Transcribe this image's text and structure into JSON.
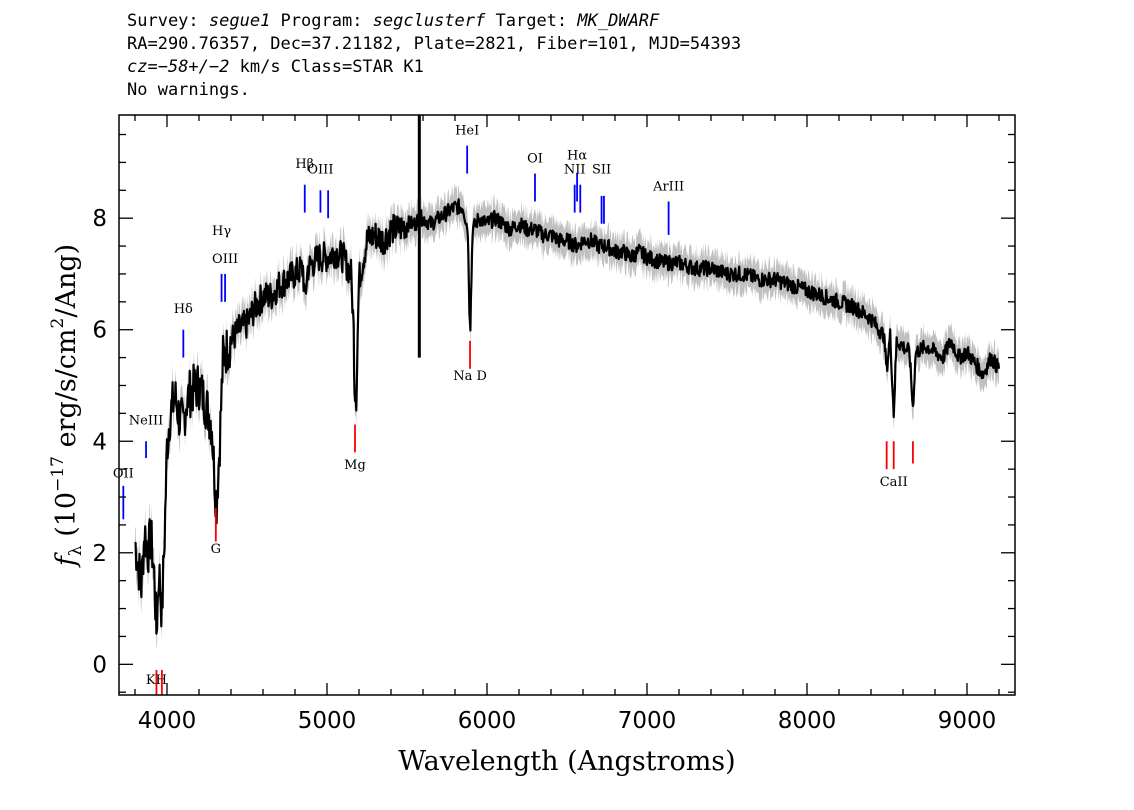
{
  "header": {
    "line1_a": "Survey: ",
    "survey": "segue1",
    "line1_b": " Program: ",
    "program": "segclusterf",
    "line1_c": " Target: ",
    "target": "MK_DWARF",
    "line2": "RA=290.76357, Dec=37.21182, Plate=2821, Fiber=101, MJD=54393",
    "cz_label": "cz",
    "cz_value": "=−58+/−2",
    "line3_b": " km/s Class=STAR K1",
    "line4": "No warnings."
  },
  "chart_data": {
    "type": "line",
    "title": "",
    "xlabel": "Wavelength (Angstroms)",
    "ylabel_prefix": "f",
    "ylabel_sub": "λ",
    "ylabel_text": " (10",
    "ylabel_exp": "−17",
    "ylabel_text2": " erg/s/cm",
    "ylabel_exp2": "2",
    "ylabel_text3": "/Ang)",
    "xlim": [
      3700,
      9300
    ],
    "ylim": [
      -0.55,
      9.85
    ],
    "xticks": [
      4000,
      5000,
      6000,
      7000,
      8000,
      9000
    ],
    "yticks": [
      0,
      2,
      4,
      6,
      8
    ],
    "grid": false,
    "series": [
      {
        "color": "#000000",
        "points": [
          [
            3800,
            2.2
          ],
          [
            3820,
            1.8
          ],
          [
            3840,
            1.4
          ],
          [
            3860,
            2.4
          ],
          [
            3880,
            2.0
          ],
          [
            3900,
            2.3
          ],
          [
            3920,
            1.6
          ],
          [
            3934,
            0.6
          ],
          [
            3950,
            1.7
          ],
          [
            3968,
            0.9
          ],
          [
            3985,
            2.3
          ],
          [
            4000,
            3.9
          ],
          [
            4020,
            4.5
          ],
          [
            4050,
            4.8
          ],
          [
            4080,
            4.4
          ],
          [
            4102,
            4.3
          ],
          [
            4120,
            4.7
          ],
          [
            4150,
            4.9
          ],
          [
            4200,
            5.0
          ],
          [
            4250,
            4.6
          ],
          [
            4280,
            4.3
          ],
          [
            4300,
            3.2
          ],
          [
            4310,
            2.9
          ],
          [
            4330,
            4.0
          ],
          [
            4350,
            5.5
          ],
          [
            4400,
            5.8
          ],
          [
            4450,
            6.0
          ],
          [
            4500,
            6.1
          ],
          [
            4550,
            6.4
          ],
          [
            4600,
            6.6
          ],
          [
            4650,
            6.6
          ],
          [
            4700,
            6.8
          ],
          [
            4750,
            6.9
          ],
          [
            4800,
            7.0
          ],
          [
            4850,
            7.1
          ],
          [
            4861,
            6.5
          ],
          [
            4880,
            7.1
          ],
          [
            4950,
            7.3
          ],
          [
            5000,
            7.3
          ],
          [
            5050,
            7.4
          ],
          [
            5100,
            7.3
          ],
          [
            5150,
            7.0
          ],
          [
            5167,
            6.0
          ],
          [
            5172,
            5.0
          ],
          [
            5183,
            4.8
          ],
          [
            5200,
            6.9
          ],
          [
            5250,
            7.6
          ],
          [
            5300,
            7.7
          ],
          [
            5350,
            7.6
          ],
          [
            5400,
            7.8
          ],
          [
            5450,
            7.8
          ],
          [
            5500,
            7.9
          ],
          [
            5550,
            7.9
          ],
          [
            5577,
            8.0
          ],
          [
            5600,
            8.0
          ],
          [
            5650,
            7.9
          ],
          [
            5700,
            8.0
          ],
          [
            5750,
            8.1
          ],
          [
            5800,
            8.2
          ],
          [
            5850,
            8.2
          ],
          [
            5880,
            7.8
          ],
          [
            5890,
            6.4
          ],
          [
            5896,
            6.1
          ],
          [
            5910,
            7.8
          ],
          [
            5950,
            8.0
          ],
          [
            6000,
            7.9
          ],
          [
            6050,
            8.0
          ],
          [
            6100,
            7.9
          ],
          [
            6150,
            7.8
          ],
          [
            6200,
            7.9
          ],
          [
            6250,
            7.8
          ],
          [
            6300,
            7.8
          ],
          [
            6350,
            7.7
          ],
          [
            6400,
            7.7
          ],
          [
            6450,
            7.6
          ],
          [
            6500,
            7.6
          ],
          [
            6563,
            7.5
          ],
          [
            6600,
            7.6
          ],
          [
            6650,
            7.6
          ],
          [
            6700,
            7.5
          ],
          [
            6750,
            7.5
          ],
          [
            6800,
            7.4
          ],
          [
            6850,
            7.4
          ],
          [
            6900,
            7.3
          ],
          [
            6950,
            7.4
          ],
          [
            7000,
            7.3
          ],
          [
            7100,
            7.2
          ],
          [
            7200,
            7.2
          ],
          [
            7300,
            7.1
          ],
          [
            7400,
            7.1
          ],
          [
            7500,
            7.0
          ],
          [
            7600,
            7.0
          ],
          [
            7700,
            6.9
          ],
          [
            7800,
            6.9
          ],
          [
            7900,
            6.8
          ],
          [
            8000,
            6.7
          ],
          [
            8100,
            6.6
          ],
          [
            8200,
            6.5
          ],
          [
            8300,
            6.4
          ],
          [
            8400,
            6.2
          ],
          [
            8450,
            6.0
          ],
          [
            8480,
            5.9
          ],
          [
            8498,
            5.3
          ],
          [
            8520,
            5.9
          ],
          [
            8542,
            4.5
          ],
          [
            8560,
            5.8
          ],
          [
            8600,
            5.7
          ],
          [
            8640,
            5.6
          ],
          [
            8662,
            4.6
          ],
          [
            8680,
            5.6
          ],
          [
            8750,
            5.7
          ],
          [
            8800,
            5.6
          ],
          [
            8850,
            5.5
          ],
          [
            8900,
            5.8
          ],
          [
            8950,
            5.5
          ],
          [
            9000,
            5.6
          ],
          [
            9050,
            5.4
          ],
          [
            9100,
            5.2
          ],
          [
            9150,
            5.5
          ],
          [
            9200,
            5.3
          ]
        ]
      }
    ],
    "sky_residual": {
      "x": 5577,
      "y_top": 9.85,
      "y_bottom": 5.5,
      "color": "#000000"
    },
    "error_band_color": "#c0c0c0",
    "emission_color": "#0000ff",
    "absorption_color": "#ff0000",
    "emission_lines": [
      {
        "label": "OII",
        "x": 3727,
        "y_top": 3.2,
        "y_bottom": 2.6,
        "ly": 3.35
      },
      {
        "label": "NeIII",
        "x": 3869,
        "y_top": 4.0,
        "y_bottom": 3.7,
        "ly": 4.3
      },
      {
        "label": "Hδ",
        "x": 4102,
        "y_top": 6.0,
        "y_bottom": 5.5,
        "ly": 6.3
      },
      {
        "label": "Hγ",
        "x": 4341,
        "y_top": 7.0,
        "y_bottom": 6.5,
        "ly": 7.7
      },
      {
        "label": "OIII",
        "x": 4363,
        "y_top": 7.0,
        "y_bottom": 6.5,
        "ly": 7.2
      },
      {
        "label": "Hβ",
        "x": 4861,
        "y_top": 8.6,
        "y_bottom": 8.1,
        "ly": 8.9
      },
      {
        "label": "OIII",
        "x": 4959,
        "y_top": 8.5,
        "y_bottom": 8.1,
        "ly": 8.8
      },
      {
        "label": "",
        "x": 5007,
        "y_top": 8.5,
        "y_bottom": 8.0,
        "ly": 0
      },
      {
        "label": "HeI",
        "x": 5876,
        "y_top": 9.3,
        "y_bottom": 8.8,
        "ly": 9.5
      },
      {
        "label": "OI",
        "x": 6300,
        "y_top": 8.8,
        "y_bottom": 8.3,
        "ly": 9.0
      },
      {
        "label": "NII",
        "x": 6548,
        "y_top": 8.6,
        "y_bottom": 8.1,
        "ly": 8.8
      },
      {
        "label": "Hα",
        "x": 6563,
        "y_top": 8.8,
        "y_bottom": 8.3,
        "ly": 9.05
      },
      {
        "label": "",
        "x": 6583,
        "y_top": 8.6,
        "y_bottom": 8.1,
        "ly": 0
      },
      {
        "label": "SII",
        "x": 6716,
        "y_top": 8.4,
        "y_bottom": 7.9,
        "ly": 8.8
      },
      {
        "label": "",
        "x": 6731,
        "y_top": 8.4,
        "y_bottom": 7.9,
        "ly": 0
      },
      {
        "label": "ArIII",
        "x": 7135,
        "y_top": 8.3,
        "y_bottom": 7.7,
        "ly": 8.5
      }
    ],
    "absorption_lines": [
      {
        "label": "KH",
        "x": 3934,
        "y_top": -0.1,
        "y_bottom": -0.7,
        "ly": -0.35
      },
      {
        "label": "",
        "x": 3968,
        "y_top": -0.1,
        "y_bottom": -0.7,
        "ly": 0
      },
      {
        "label": "G",
        "x": 4305,
        "y_top": 2.8,
        "y_bottom": 2.2,
        "ly": 2.0
      },
      {
        "label": "Mg",
        "x": 5175,
        "y_top": 4.3,
        "y_bottom": 3.8,
        "ly": 3.5
      },
      {
        "label": "Na D",
        "x": 5894,
        "y_top": 5.8,
        "y_bottom": 5.3,
        "ly": 5.1
      },
      {
        "label": "CaII",
        "x": 8542,
        "y_top": 4.0,
        "y_bottom": 3.5,
        "ly": 3.2
      },
      {
        "label": "",
        "x": 8498,
        "y_top": 4.0,
        "y_bottom": 3.5,
        "ly": 0
      },
      {
        "label": "",
        "x": 8662,
        "y_top": 4.0,
        "y_bottom": 3.6,
        "ly": 0
      }
    ]
  }
}
